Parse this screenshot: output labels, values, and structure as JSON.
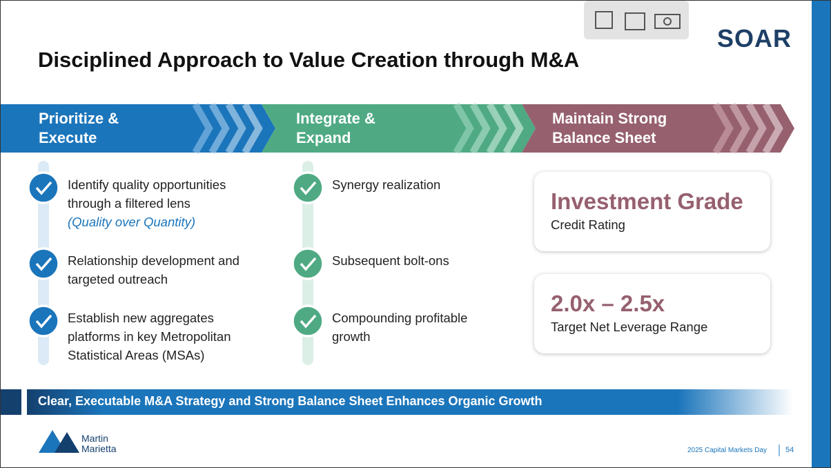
{
  "header": {
    "title": "Disciplined Approach to Value Creation through M&A",
    "logo": "SOAR"
  },
  "columns": [
    {
      "heading": "Prioritize & Execute",
      "items": [
        {
          "text": "Identify quality opportunities through a filtered lens",
          "note": "(Quality over Quantity)"
        },
        {
          "text": "Relationship development and targeted outreach"
        },
        {
          "text": "Establish new aggregates platforms in key Metropolitan Statistical Areas (MSAs)"
        }
      ]
    },
    {
      "heading": "Integrate & Expand",
      "items": [
        {
          "text": "Synergy realization"
        },
        {
          "text": "Subsequent bolt-ons"
        },
        {
          "text": "Compounding profitable growth"
        }
      ]
    },
    {
      "heading": "Maintain Strong Balance Sheet",
      "highlights": [
        {
          "value": "Investment Grade",
          "label": "Credit Rating"
        },
        {
          "value": "2.0x – 2.5x",
          "label": "Target Net Leverage Range"
        }
      ]
    }
  ],
  "banner": "Clear, Executable M&A Strategy and Strong Balance Sheet Enhances Organic Growth",
  "footer": {
    "company_line1": "Martin",
    "company_line2": "Marietta",
    "event": "2025 Capital Markets Day",
    "page": "54"
  }
}
